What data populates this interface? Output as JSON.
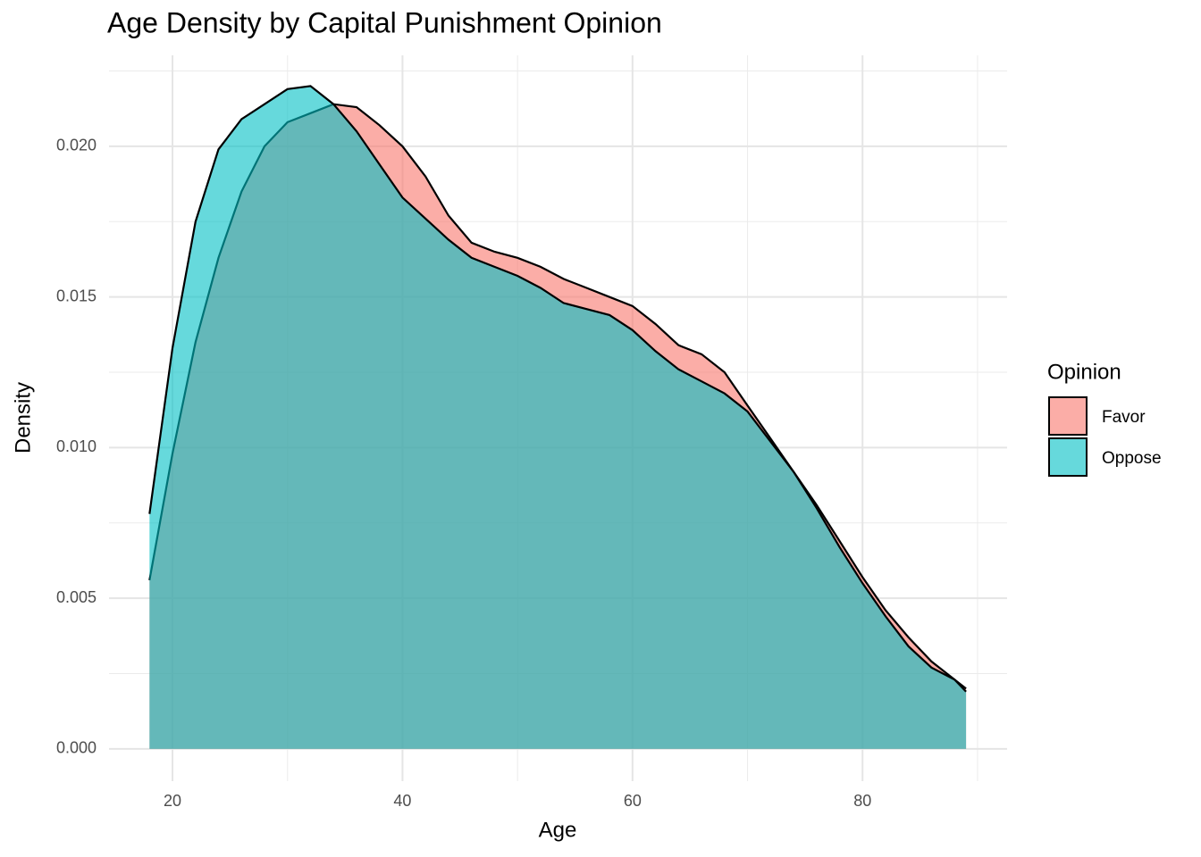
{
  "chart_data": {
    "type": "density",
    "title": "Age Density by Capital Punishment Opinion",
    "x_label": "Age",
    "y_label": "Density",
    "legend_title": "Opinion",
    "legend_position": "right",
    "grid": true,
    "alpha": 0.6,
    "xlim": [
      14.48,
      92.57
    ],
    "ylim": [
      -0.00107,
      0.02302
    ],
    "xticks": [
      20,
      40,
      60,
      80
    ],
    "yticks": [
      {
        "value": 0,
        "label": "0.000"
      },
      {
        "value": 0.005,
        "label": "0.005"
      },
      {
        "value": 0.01,
        "label": "0.010"
      },
      {
        "value": 0.015,
        "label": "0.015"
      },
      {
        "value": 0.02,
        "label": "0.020"
      }
    ],
    "x": [
      18,
      20,
      22,
      24,
      26,
      28,
      30,
      32,
      34,
      36,
      38,
      40,
      42,
      44,
      46,
      48,
      50,
      52,
      54,
      56,
      58,
      60,
      62,
      64,
      66,
      68,
      70,
      72,
      74,
      76,
      78,
      80,
      82,
      84,
      86,
      88,
      89
    ],
    "series": [
      {
        "name": "Favor",
        "color": "#F8766D",
        "values": [
          0.0056,
          0.0098,
          0.0135,
          0.0163,
          0.0185,
          0.02,
          0.0208,
          0.0211,
          0.0214,
          0.0213,
          0.0207,
          0.02,
          0.019,
          0.0177,
          0.0168,
          0.0165,
          0.0163,
          0.016,
          0.0156,
          0.0153,
          0.015,
          0.0147,
          0.0141,
          0.0134,
          0.0131,
          0.0125,
          0.0114,
          0.0103,
          0.0092,
          0.0081,
          0.0069,
          0.0057,
          0.0046,
          0.0037,
          0.0029,
          0.0023,
          0.002
        ]
      },
      {
        "name": "Oppose",
        "color": "#00BFC4",
        "values": [
          0.0078,
          0.0133,
          0.0175,
          0.0199,
          0.0209,
          0.0214,
          0.0219,
          0.022,
          0.0214,
          0.0205,
          0.0194,
          0.0183,
          0.0176,
          0.0169,
          0.0163,
          0.016,
          0.0157,
          0.0153,
          0.0148,
          0.0146,
          0.0144,
          0.0139,
          0.0132,
          0.0126,
          0.0122,
          0.0118,
          0.0112,
          0.0102,
          0.0092,
          0.008,
          0.0067,
          0.0055,
          0.0044,
          0.0034,
          0.0027,
          0.0023,
          0.0019
        ]
      }
    ]
  }
}
